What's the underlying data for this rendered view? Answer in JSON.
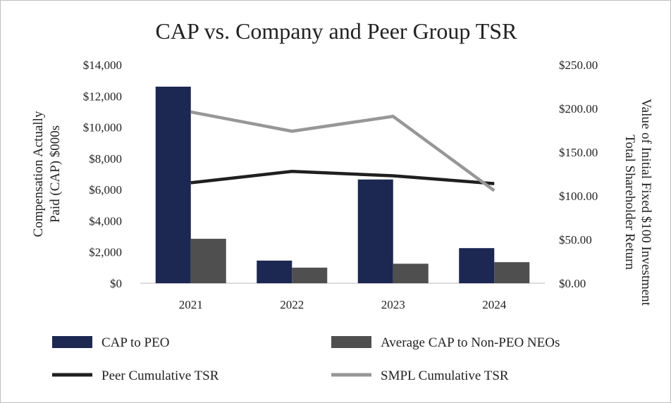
{
  "chart_data": {
    "type": "bar",
    "title": "CAP vs. Company and Peer Group TSR",
    "categories": [
      "2021",
      "2022",
      "2023",
      "2024"
    ],
    "ylabel": [
      "Compensation Actually",
      "Paid (CAP) $000s"
    ],
    "y2label": [
      "Total Shareholder Return",
      "Value of Initial Fixed $100 Investment"
    ],
    "ylim": [
      0,
      14000
    ],
    "y2lim": [
      0,
      250
    ],
    "y_ticks": [
      "$0",
      "$2,000",
      "$4,000",
      "$6,000",
      "$8,000",
      "$10,000",
      "$12,000",
      "$14,000"
    ],
    "y2_ticks": [
      "$0.00",
      "$50.00",
      "$100.00",
      "$150.00",
      "$200.00",
      "$250.00"
    ],
    "grid": false,
    "legend_position": "bottom",
    "series": [
      {
        "name": "CAP to PEO",
        "kind": "bar",
        "axis": "left",
        "color": "#1c2752",
        "values": [
          12600,
          1450,
          6650,
          2250
        ]
      },
      {
        "name": "Average CAP to Non-PEO NEOs",
        "kind": "bar",
        "axis": "left",
        "color": "#4f4f4f",
        "values": [
          2850,
          1000,
          1250,
          1350
        ]
      },
      {
        "name": "Peer Cumulative TSR",
        "kind": "line",
        "axis": "right",
        "color": "#1f1f1f",
        "values": [
          115,
          128,
          123,
          114
        ]
      },
      {
        "name": "SMPL Cumulative TSR",
        "kind": "line",
        "axis": "right",
        "color": "#979797",
        "values": [
          196,
          174,
          191,
          106
        ]
      }
    ]
  }
}
